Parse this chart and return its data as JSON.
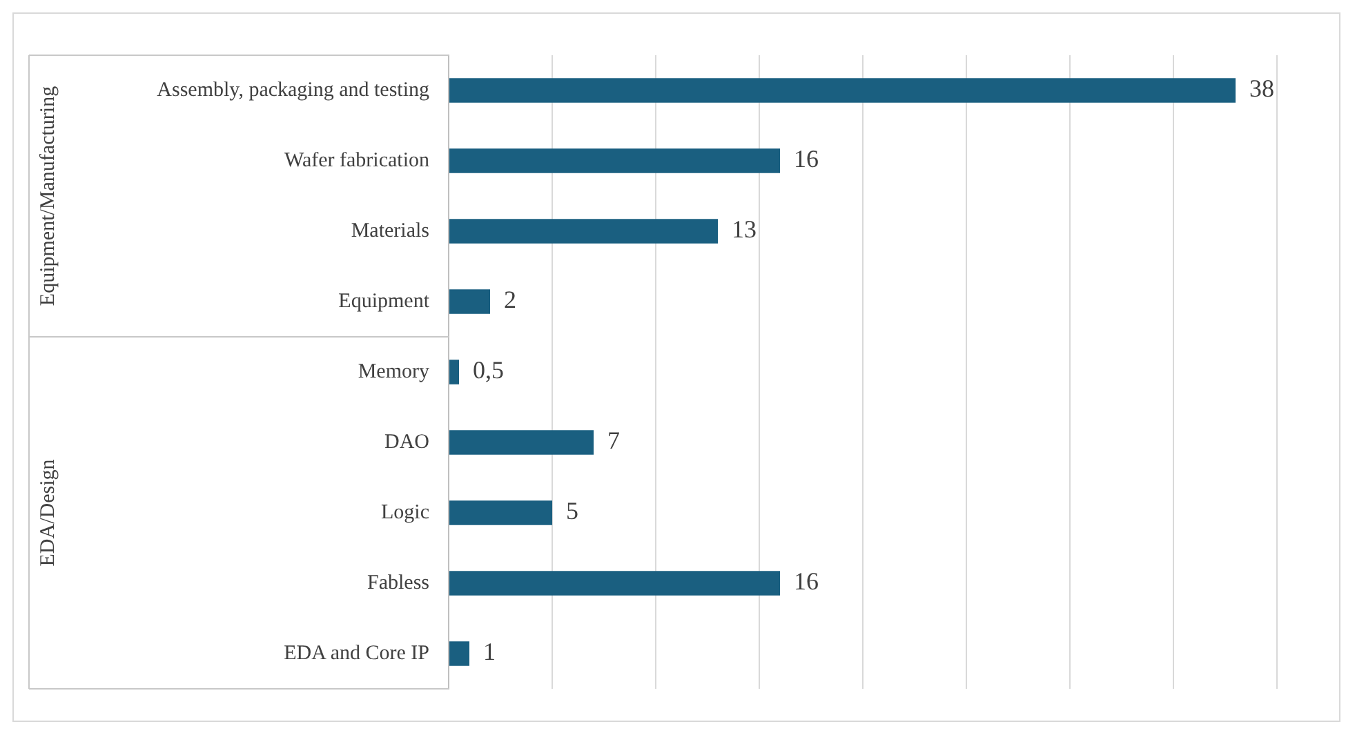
{
  "chart_data": {
    "type": "bar",
    "orientation": "horizontal",
    "categories": [
      "Assembly, packaging and testing",
      "Wafer fabrication",
      "Materials",
      "Equipment",
      "Memory",
      "DAO",
      "Logic",
      "Fabless",
      "EDA and Core IP"
    ],
    "values": [
      38,
      16,
      13,
      2,
      0.5,
      7,
      5,
      16,
      1
    ],
    "value_labels": [
      "38",
      "16",
      "13",
      "2",
      "0,5",
      "7",
      "5",
      "16",
      "1"
    ],
    "color": "#1a5f80",
    "relative": false,
    "xlim": [
      0,
      40
    ],
    "xticks": [
      {
        "value": 0,
        "label": null
      },
      {
        "value": 5,
        "label": null
      },
      {
        "value": 10,
        "label": null
      },
      {
        "value": 15,
        "label": null
      },
      {
        "value": 20,
        "label": null
      },
      {
        "value": 25,
        "label": null
      },
      {
        "value": 30,
        "label": null
      },
      {
        "value": 35,
        "label": null
      },
      {
        "value": 40,
        "label": null
      }
    ],
    "grid": "x",
    "tick_labels": "y",
    "legend": false,
    "annotations": [
      "Equipment/Manufacturing",
      "EDA/Design"
    ]
  }
}
